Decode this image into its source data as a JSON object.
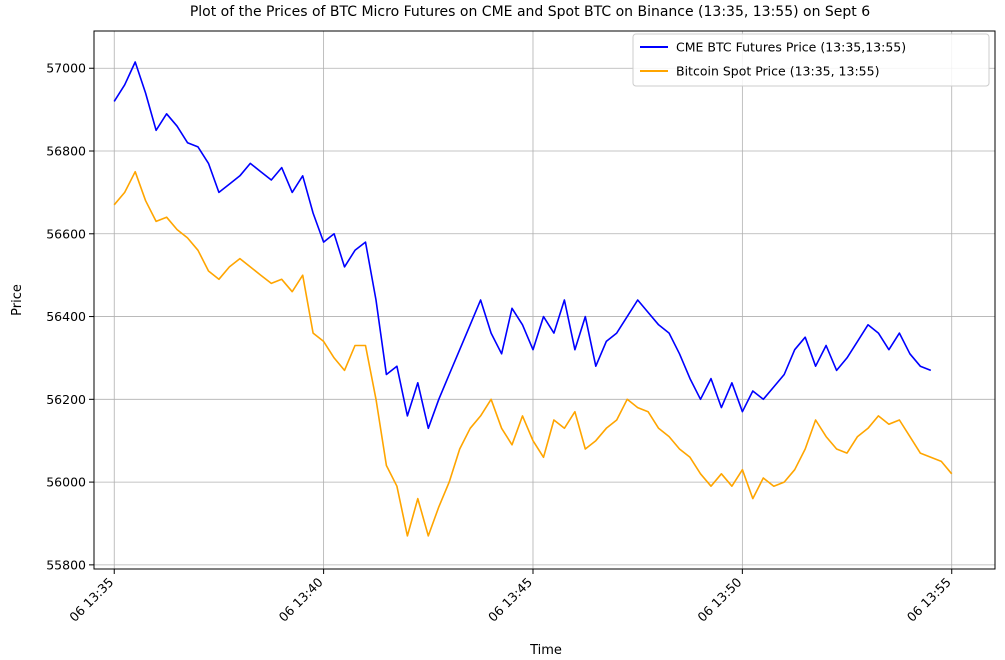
{
  "chart_data": {
    "type": "line",
    "title": "Plot of the Prices of BTC Micro Futures on CME and Spot BTC on Binance (13:35, 13:55) on Sept 6",
    "xlabel": "Time",
    "ylabel": "Price",
    "x_ticks": [
      "06 13:35",
      "06 13:40",
      "06 13:45",
      "06 13:50",
      "06 13:55"
    ],
    "y_ticks": [
      55800,
      56000,
      56200,
      56400,
      56600,
      56800,
      57000
    ],
    "xlim": [
      "13:34:31",
      "13:56:02"
    ],
    "ylim": [
      55790,
      57090
    ],
    "grid": true,
    "legend_position": "top-right",
    "series": [
      {
        "name": "CME BTC Futures Price (13:35,13:55)",
        "color": "#0000ff",
        "x": [
          "13:35:00",
          "13:35:15",
          "13:35:30",
          "13:35:45",
          "13:36:00",
          "13:36:15",
          "13:36:30",
          "13:36:45",
          "13:37:00",
          "13:37:15",
          "13:37:30",
          "13:37:45",
          "13:38:00",
          "13:38:15",
          "13:38:30",
          "13:38:45",
          "13:39:00",
          "13:39:15",
          "13:39:30",
          "13:39:45",
          "13:40:00",
          "13:40:15",
          "13:40:30",
          "13:40:45",
          "13:41:00",
          "13:41:15",
          "13:41:30",
          "13:41:45",
          "13:42:00",
          "13:42:15",
          "13:42:30",
          "13:42:45",
          "13:43:00",
          "13:43:15",
          "13:43:30",
          "13:43:45",
          "13:44:00",
          "13:44:15",
          "13:44:30",
          "13:44:45",
          "13:45:00",
          "13:45:15",
          "13:45:30",
          "13:45:45",
          "13:46:00",
          "13:46:15",
          "13:46:30",
          "13:46:45",
          "13:47:00",
          "13:47:15",
          "13:47:30",
          "13:47:45",
          "13:48:00",
          "13:48:15",
          "13:48:30",
          "13:48:45",
          "13:49:00",
          "13:49:15",
          "13:49:30",
          "13:49:45",
          "13:50:00",
          "13:50:15",
          "13:50:30",
          "13:50:45",
          "13:51:00",
          "13:51:15",
          "13:51:30",
          "13:51:45",
          "13:52:00",
          "13:52:15",
          "13:52:30",
          "13:52:45",
          "13:53:00",
          "13:53:15",
          "13:53:30",
          "13:53:45",
          "13:54:00",
          "13:54:15",
          "13:54:30"
        ],
        "y": [
          56920,
          56960,
          57015,
          56940,
          56850,
          56890,
          56860,
          56820,
          56810,
          56770,
          56700,
          56720,
          56740,
          56770,
          56750,
          56730,
          56760,
          56700,
          56740,
          56650,
          56580,
          56600,
          56520,
          56560,
          56580,
          56440,
          56260,
          56280,
          56160,
          56240,
          56130,
          56200,
          56260,
          56320,
          56380,
          56440,
          56360,
          56310,
          56420,
          56380,
          56320,
          56400,
          56360,
          56440,
          56320,
          56400,
          56280,
          56340,
          56360,
          56400,
          56440,
          56410,
          56380,
          56360,
          56310,
          56250,
          56200,
          56250,
          56180,
          56240,
          56170,
          56220,
          56200,
          56230,
          56260,
          56320,
          56350,
          56280,
          56330,
          56270,
          56300,
          56340,
          56380,
          56360,
          56320,
          56360,
          56310,
          56280,
          56270
        ]
      },
      {
        "name": "Bitcoin Spot Price (13:35, 13:55)",
        "color": "#ffa500",
        "x": [
          "13:35:00",
          "13:35:15",
          "13:35:30",
          "13:35:45",
          "13:36:00",
          "13:36:15",
          "13:36:30",
          "13:36:45",
          "13:37:00",
          "13:37:15",
          "13:37:30",
          "13:37:45",
          "13:38:00",
          "13:38:15",
          "13:38:30",
          "13:38:45",
          "13:39:00",
          "13:39:15",
          "13:39:30",
          "13:39:45",
          "13:40:00",
          "13:40:15",
          "13:40:30",
          "13:40:45",
          "13:41:00",
          "13:41:15",
          "13:41:30",
          "13:41:45",
          "13:42:00",
          "13:42:15",
          "13:42:30",
          "13:42:45",
          "13:43:00",
          "13:43:15",
          "13:43:30",
          "13:43:45",
          "13:44:00",
          "13:44:15",
          "13:44:30",
          "13:44:45",
          "13:45:00",
          "13:45:15",
          "13:45:30",
          "13:45:45",
          "13:46:00",
          "13:46:15",
          "13:46:30",
          "13:46:45",
          "13:47:00",
          "13:47:15",
          "13:47:30",
          "13:47:45",
          "13:48:00",
          "13:48:15",
          "13:48:30",
          "13:48:45",
          "13:49:00",
          "13:49:15",
          "13:49:30",
          "13:49:45",
          "13:50:00",
          "13:50:15",
          "13:50:30",
          "13:50:45",
          "13:51:00",
          "13:51:15",
          "13:51:30",
          "13:51:45",
          "13:52:00",
          "13:52:15",
          "13:52:30",
          "13:52:45",
          "13:53:00",
          "13:53:15",
          "13:53:30",
          "13:53:45",
          "13:54:00",
          "13:54:15",
          "13:54:30",
          "13:54:45",
          "13:55:00"
        ],
        "y": [
          56670,
          56700,
          56750,
          56680,
          56630,
          56640,
          56610,
          56590,
          56560,
          56510,
          56490,
          56520,
          56540,
          56520,
          56500,
          56480,
          56490,
          56460,
          56500,
          56360,
          56340,
          56300,
          56270,
          56330,
          56330,
          56200,
          56040,
          55990,
          55870,
          55960,
          55870,
          55940,
          56000,
          56080,
          56130,
          56160,
          56200,
          56130,
          56090,
          56160,
          56100,
          56060,
          56150,
          56130,
          56170,
          56080,
          56100,
          56130,
          56150,
          56200,
          56180,
          56170,
          56130,
          56110,
          56080,
          56060,
          56020,
          55990,
          56020,
          55990,
          56030,
          55960,
          56010,
          55990,
          56000,
          56030,
          56080,
          56150,
          56110,
          56080,
          56070,
          56110,
          56130,
          56160,
          56140,
          56150,
          56110,
          56070,
          56060,
          56050,
          56020
        ]
      }
    ]
  }
}
